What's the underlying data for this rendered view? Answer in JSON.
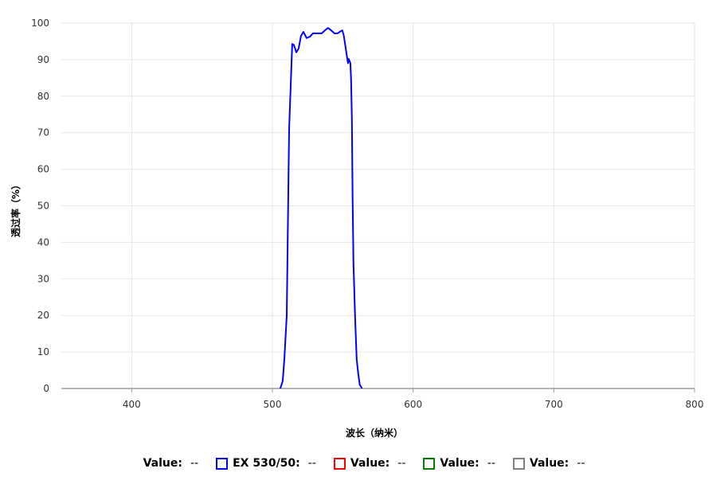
{
  "chart_data": {
    "type": "line",
    "title": "",
    "xlabel": "波长（纳米）",
    "ylabel": "透过率（%）",
    "xlim": [
      350,
      800
    ],
    "ylim": [
      0,
      100
    ],
    "xticks": [
      400,
      500,
      600,
      700,
      800
    ],
    "yticks": [
      0,
      10,
      20,
      30,
      40,
      50,
      60,
      70,
      80,
      90,
      100
    ],
    "grid": true,
    "legend_placement": "bottom",
    "series": [
      {
        "name": "EX 530/50",
        "color": "#0000ff",
        "x": [
          505.6,
          507.3,
          508.5,
          510.2,
          511.9,
          513.6,
          514.1,
          515.3,
          517,
          518.6,
          520.3,
          522,
          524.3,
          526.6,
          528.8,
          531.6,
          535,
          537.3,
          539.5,
          541.8,
          544.1,
          546.3,
          548.6,
          549.7,
          550.8,
          552.5,
          553.7,
          554.2,
          555.4,
          555.9,
          556.5,
          557,
          557.6,
          558.8,
          559.9,
          561,
          562.1,
          563.8
        ],
        "y": [
          0,
          2,
          8,
          20,
          71,
          89,
          94.3,
          94,
          92,
          93,
          96.5,
          97.6,
          95.9,
          96.3,
          97.2,
          97.2,
          97.2,
          98,
          98.7,
          98,
          97.2,
          97.2,
          97.8,
          98,
          96.5,
          92,
          89,
          90.2,
          89,
          84.5,
          73.6,
          52,
          34,
          19,
          8,
          4,
          1,
          0
        ]
      }
    ]
  },
  "legend": [
    {
      "label": "Value:",
      "value": "--",
      "color": null
    },
    {
      "label": "EX 530/50:",
      "value": "--",
      "color": "#0000ff"
    },
    {
      "label": "Value:",
      "value": "--",
      "color": "#ff0000"
    },
    {
      "label": "Value:",
      "value": "--",
      "color": "#008000"
    },
    {
      "label": "Value:",
      "value": "--",
      "color": "#808080"
    }
  ]
}
